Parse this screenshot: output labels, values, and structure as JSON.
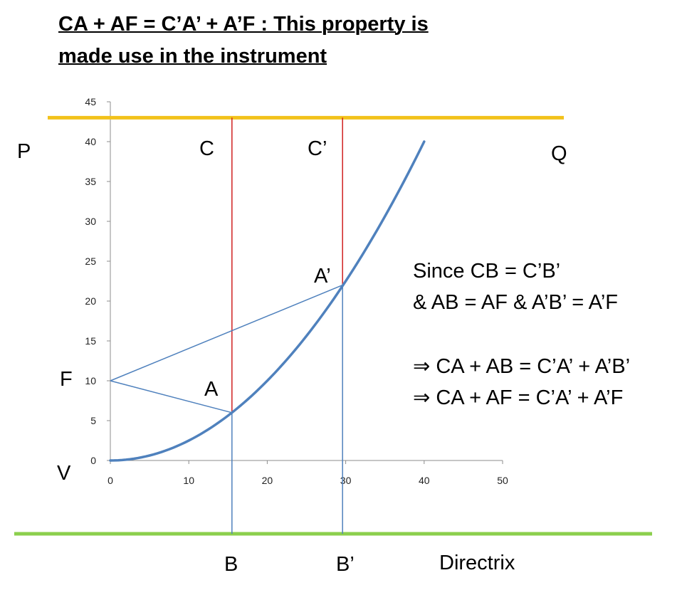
{
  "title": {
    "line1": "CA + AF = C’A’ + A’F  : This property is",
    "line2": "made use in the instrument"
  },
  "labels": {
    "P": "P",
    "Q": "Q",
    "C": "C",
    "C_prime": "C’",
    "A": "A",
    "A_prime": "A’",
    "F": "F",
    "V": "V",
    "B": "B",
    "B_prime": "B’",
    "directrix": "Directrix"
  },
  "explanation": [
    "Since CB = C’B’",
    "& AB = AF  & A’B’ = A’F",
    "⇒ CA + AB = C’A’ + A’B’",
    "⇒ CA + AF = C’A’ + A’F"
  ],
  "chart_data": {
    "type": "line",
    "x_ticks": [
      0,
      10,
      20,
      30,
      40,
      50
    ],
    "y_ticks": [
      0,
      5,
      10,
      15,
      20,
      25,
      30,
      35,
      40,
      45
    ],
    "xlim": [
      0,
      50
    ],
    "ylim": [
      0,
      45
    ],
    "parabola": {
      "equation_coefficient": 0.025,
      "x_range": [
        0,
        40
      ]
    },
    "points": {
      "F": [
        0,
        10
      ],
      "A": [
        15.5,
        6.0
      ],
      "A_prime": [
        29.6,
        22.0
      ],
      "V": [
        0,
        0
      ]
    },
    "line_PQ_y": 43,
    "colors": {
      "parabola": "#4f81bd",
      "PQ_line": "#f2c21b",
      "directrix": "#8ccf4d",
      "vertical_red": "#d02020",
      "vertical_blue": "#4f81bd",
      "focal_lines": "#4f81bd"
    }
  }
}
